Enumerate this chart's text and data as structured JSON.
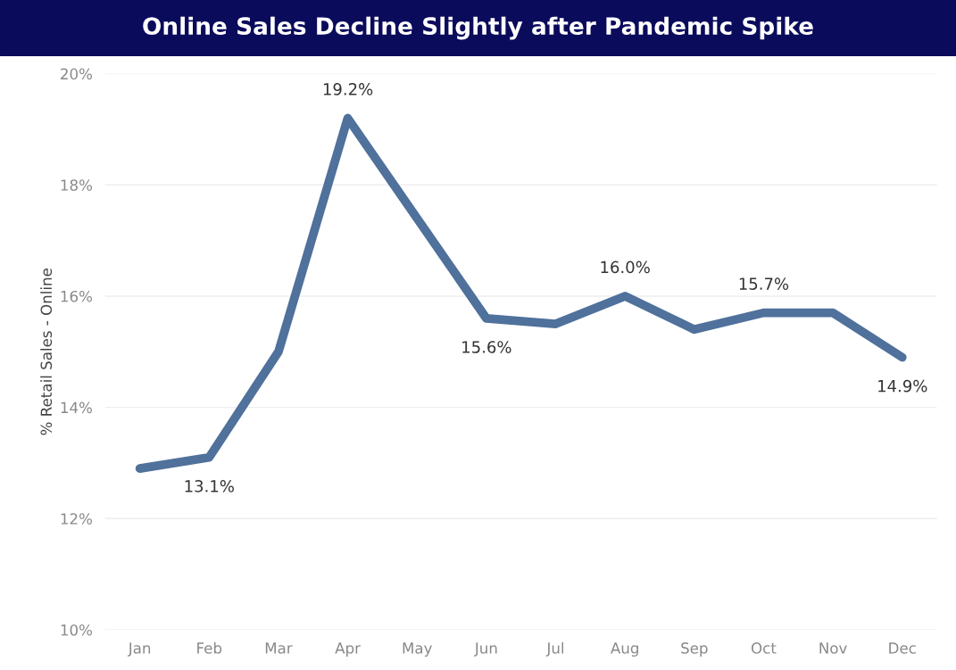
{
  "chart_data": {
    "type": "line",
    "title": "Online Sales Decline Slightly after Pandemic Spike",
    "ylabel": "% Retail Sales - Online",
    "categories": [
      "Jan",
      "Feb",
      "Mar",
      "Apr",
      "May",
      "Jun",
      "Jul",
      "Aug",
      "Sep",
      "Oct",
      "Nov",
      "Dec"
    ],
    "series": [
      {
        "color": "#4f719b",
        "values": [
          12.9,
          13.1,
          15.0,
          19.2,
          17.4,
          15.6,
          15.5,
          16.0,
          15.4,
          15.7,
          15.7,
          14.9
        ],
        "value_labels": [
          null,
          "13.1%",
          null,
          "19.2%",
          null,
          "15.6%",
          null,
          "16.0%",
          null,
          "15.7%",
          null,
          "14.9%"
        ]
      }
    ],
    "ylim": [
      10,
      20
    ],
    "yticks": [
      {
        "value": 10,
        "label": "10%"
      },
      {
        "value": 12,
        "label": "12%"
      },
      {
        "value": 14,
        "label": "14%"
      },
      {
        "value": 16,
        "label": "16%"
      },
      {
        "value": 18,
        "label": "18%"
      },
      {
        "value": 20,
        "label": "20%"
      }
    ],
    "grid": "y",
    "legend": false,
    "marker": "none",
    "line_style": "solid"
  }
}
